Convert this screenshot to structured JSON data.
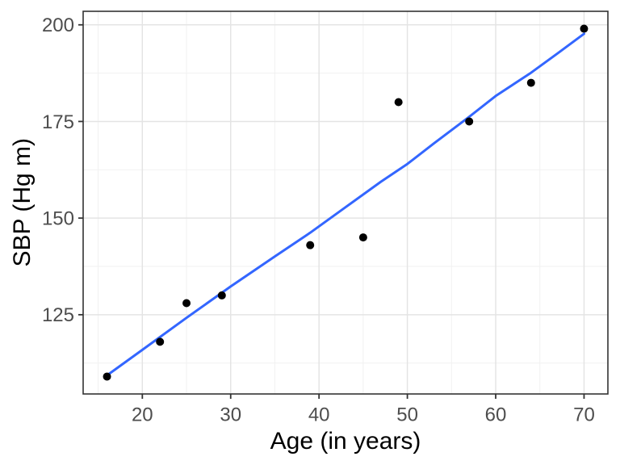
{
  "chart_data": {
    "type": "scatter",
    "title": "",
    "xlabel": "Age (in years)",
    "ylabel": "SBP (Hg m)",
    "x": [
      16,
      22,
      25,
      29,
      39,
      45,
      49,
      57,
      64,
      70
    ],
    "y": [
      109,
      118,
      128,
      130,
      143,
      145,
      180,
      175,
      185,
      199
    ],
    "xlim": [
      13.3,
      72.7
    ],
    "ylim": [
      104.5,
      203.5
    ],
    "x_major_ticks": [
      20,
      30,
      40,
      50,
      60,
      70
    ],
    "x_minor_ticks": [
      15,
      25,
      35,
      45,
      55,
      65
    ],
    "y_major_ticks": [
      125,
      150,
      175,
      200
    ],
    "y_minor_ticks": [
      112.5,
      137.5,
      162.5,
      187.5
    ],
    "x_tick_labels": [
      "20",
      "30",
      "40",
      "50",
      "60",
      "70"
    ],
    "y_tick_labels": [
      "125",
      "150",
      "175",
      "200"
    ],
    "grid": true,
    "legend": false,
    "trend": {
      "type": "smooth",
      "points": [
        [
          16,
          109.3
        ],
        [
          20,
          115.9
        ],
        [
          25,
          124.2
        ],
        [
          30,
          132.3
        ],
        [
          35,
          140.1
        ],
        [
          39,
          146.2
        ],
        [
          43,
          152.8
        ],
        [
          47,
          159.4
        ],
        [
          50,
          164.0
        ],
        [
          53,
          169.3
        ],
        [
          57,
          176.2
        ],
        [
          60,
          181.6
        ],
        [
          64,
          187.6
        ],
        [
          67,
          192.6
        ],
        [
          70,
          197.7
        ]
      ]
    },
    "colors": {
      "point": "#000000",
      "trend_line": "#3366FF",
      "grid_major": "#E4E4E4",
      "grid_minor": "#F1F1F1",
      "panel_border": "#333333",
      "tick_mark": "#333333",
      "tick_label": "#4D4D4D",
      "axis_title": "#000000",
      "panel_background": "#FFFFFF"
    }
  }
}
